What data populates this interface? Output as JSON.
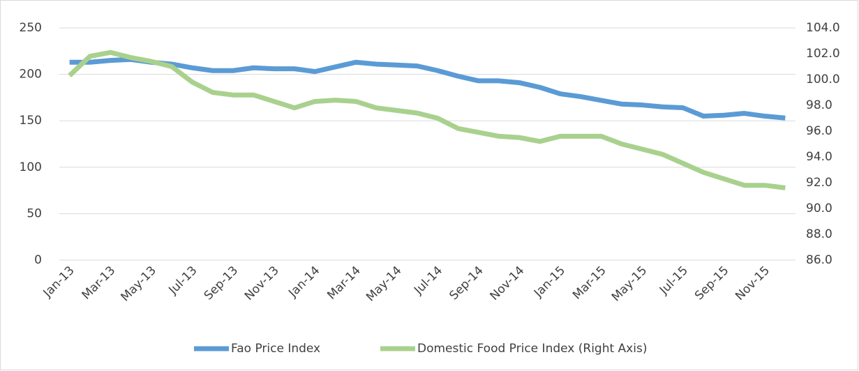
{
  "chart_data": {
    "type": "line",
    "categories": [
      "Jan-13",
      null,
      "Mar-13",
      null,
      "May-13",
      null,
      "Jul-13",
      null,
      "Sep-13",
      null,
      "Nov-13",
      null,
      "Jan-14",
      null,
      "Mar-14",
      null,
      "May-14",
      null,
      "Jul-14",
      null,
      "Sep-14",
      null,
      "Nov-14",
      null,
      "Jan-15",
      null,
      "Mar-15",
      null,
      "May-15",
      null,
      "Jul-15",
      null,
      "Sep-15",
      null,
      "Nov-15",
      null
    ],
    "series": [
      {
        "name": "Fao Price Index",
        "color": "#5b9bd5",
        "values": [
          213,
          213,
          215,
          216,
          213,
          211,
          207,
          204,
          204,
          207,
          206,
          206,
          203,
          208,
          213,
          211,
          210,
          209,
          204,
          198,
          193,
          193,
          191,
          186,
          179,
          176,
          172,
          168,
          167,
          165,
          164,
          155,
          156,
          158,
          155,
          153
        ]
      },
      {
        "name": "Domestic Food Price Index (Right Axis)",
        "color": "#a9d18e",
        "axis": "y2",
        "values": [
          100.3,
          101.8,
          102.1,
          101.7,
          101.4,
          101.0,
          99.8,
          99.0,
          98.8,
          98.8,
          98.3,
          97.8,
          98.3,
          98.4,
          98.3,
          97.8,
          97.6,
          97.4,
          97.0,
          96.2,
          95.9,
          95.6,
          95.5,
          95.2,
          95.6,
          95.6,
          95.6,
          95.0,
          94.6,
          94.2,
          93.5,
          92.8,
          92.3,
          91.8,
          91.8,
          91.6
        ]
      }
    ],
    "ylim": [
      0,
      250
    ],
    "yticks": [
      0,
      50,
      100,
      150,
      200,
      250
    ],
    "y2lim": [
      86,
      104
    ],
    "y2ticks": [
      {
        "value": 86,
        "label": "86.0"
      },
      {
        "value": 88,
        "label": "88.0"
      },
      {
        "value": 90,
        "label": "90.0"
      },
      {
        "value": 92,
        "label": "92.0"
      },
      {
        "value": 94,
        "label": "94.0"
      },
      {
        "value": 96,
        "label": "96.0"
      },
      {
        "value": 98,
        "label": "98.0"
      },
      {
        "value": 100,
        "label": "100.0"
      },
      {
        "value": 102,
        "label": "102.0"
      },
      {
        "value": 104,
        "label": "104.0"
      }
    ],
    "grid": true,
    "legend": "bottom"
  }
}
